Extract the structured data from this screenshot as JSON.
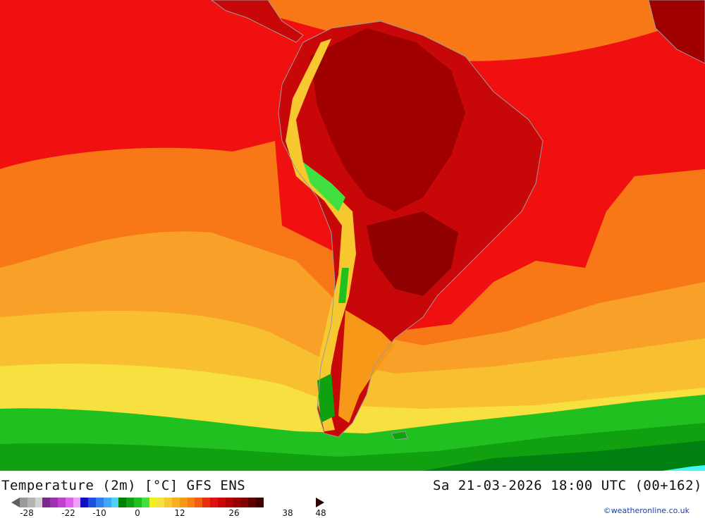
{
  "title": {
    "left": "Temperature (2m) [°C] GFS ENS",
    "right": "Sa 21-03-2026 18:00 UTC (00+162)"
  },
  "credit": "©weatheronline.co.uk",
  "legend": {
    "tick_labels": [
      "-28",
      "-22",
      "-10",
      "0",
      "12",
      "26",
      "38",
      "48"
    ],
    "colors": [
      "#9a9a9a",
      "#b4b4b4",
      "#d2d2d2",
      "#7a2a8a",
      "#a030b0",
      "#c040d0",
      "#e060f0",
      "#f0a0f8",
      "#1010c0",
      "#2050e0",
      "#3080f0",
      "#40a8f8",
      "#50d0f8",
      "#008000",
      "#10a010",
      "#20c020",
      "#40e040",
      "#f0f020",
      "#f8e040",
      "#f8c830",
      "#f8b020",
      "#f89818",
      "#f88010",
      "#f06010",
      "#e83010",
      "#e01010",
      "#c80808",
      "#b00000",
      "#980000",
      "#800000",
      "#600000",
      "#400000"
    ]
  },
  "map": {
    "region": "South America",
    "palette": {
      "ocean_hot": "#f01010",
      "ocean_orange": "#f87818",
      "ocean_lightorange": "#f8a028",
      "ocean_yellow": "#f8d830",
      "ocean_green": "#20c020",
      "ocean_darkgreen": "#008010",
      "land_darkred": "#a00000",
      "land_red": "#c80808",
      "andes_yellow": "#f8c830",
      "cold_cyan": "#40f8f8"
    }
  }
}
